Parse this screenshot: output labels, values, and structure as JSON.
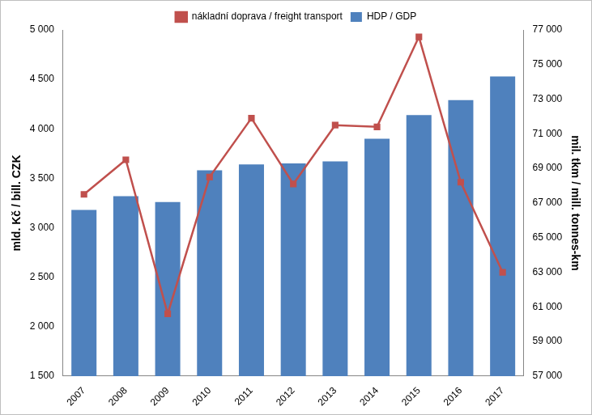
{
  "chart_data": {
    "type": "bar",
    "categories": [
      "2007",
      "2008",
      "2009",
      "2010",
      "2011",
      "2012",
      "2013",
      "2014",
      "2015",
      "2016",
      "2017"
    ],
    "series": [
      {
        "name": "HDP / GDP",
        "type": "bar",
        "color": "#4f81bd",
        "axis": "y",
        "values": [
          3180,
          3320,
          3260,
          3580,
          3640,
          3650,
          3670,
          3900,
          4140,
          4290,
          4530
        ]
      },
      {
        "name": "nákladní doprava / freight transport",
        "type": "line",
        "color": "#c0504d",
        "axis": "y2",
        "marker": "square",
        "line_style": "solid",
        "values": [
          67500,
          69500,
          60600,
          68500,
          71900,
          68100,
          71500,
          71400,
          76600,
          68200,
          63000
        ]
      }
    ],
    "y_label": "mld. Kč / bill. CZK",
    "y2_label": "mil. tkm / mill. tonnes-km",
    "ylim": [
      1500,
      5000
    ],
    "yticks": [
      {
        "value": 1500,
        "label": "1 500"
      },
      {
        "value": 2000,
        "label": "2 000"
      },
      {
        "value": 2500,
        "label": "2 500"
      },
      {
        "value": 3000,
        "label": "3 000"
      },
      {
        "value": 3500,
        "label": "3 500"
      },
      {
        "value": 4000,
        "label": "4 000"
      },
      {
        "value": 4500,
        "label": "4 500"
      },
      {
        "value": 5000,
        "label": "5 000"
      }
    ],
    "y2lim": [
      57000,
      77000
    ],
    "y2ticks": [
      {
        "value": 57000,
        "label": "57 000"
      },
      {
        "value": 59000,
        "label": "59 000"
      },
      {
        "value": 61000,
        "label": "61 000"
      },
      {
        "value": 63000,
        "label": "63 000"
      },
      {
        "value": 65000,
        "label": "65 000"
      },
      {
        "value": 67000,
        "label": "67 000"
      },
      {
        "value": 69000,
        "label": "69 000"
      },
      {
        "value": 71000,
        "label": "71 000"
      },
      {
        "value": 73000,
        "label": "73 000"
      },
      {
        "value": 75000,
        "label": "75 000"
      },
      {
        "value": 77000,
        "label": "77 000"
      }
    ],
    "grid": false,
    "legend": "top"
  }
}
